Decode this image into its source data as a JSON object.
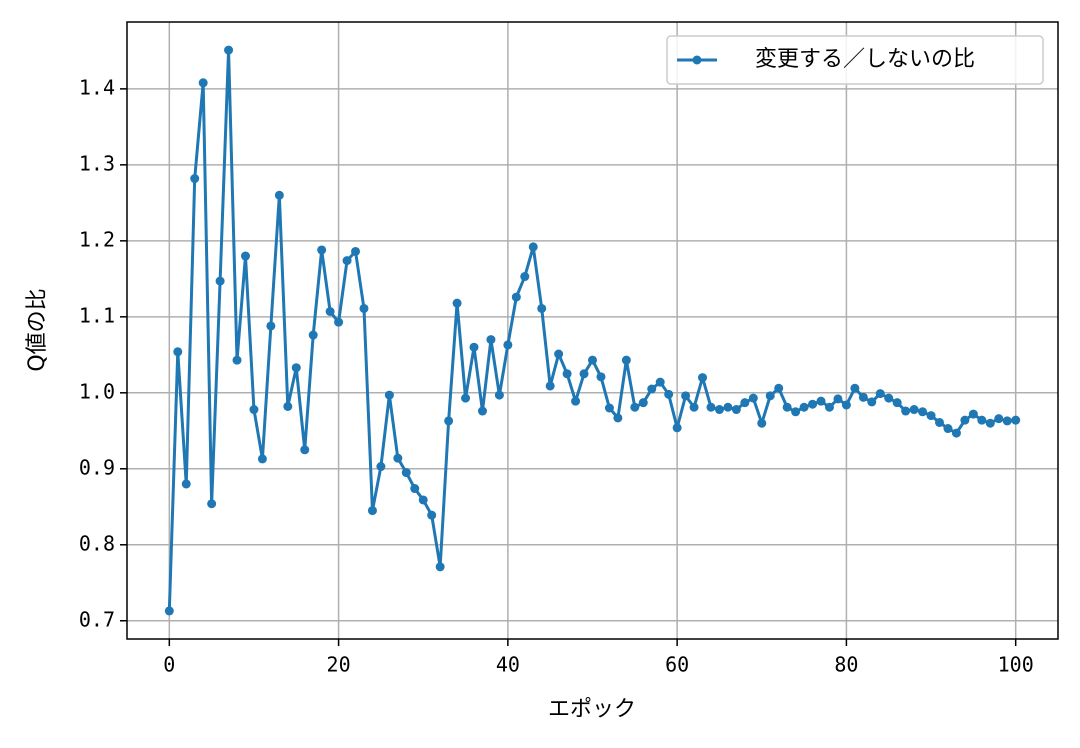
{
  "chart_data": {
    "type": "line",
    "x_label": "エポック",
    "y_label": "Q値の比",
    "x": [
      0,
      1,
      2,
      3,
      4,
      5,
      6,
      7,
      8,
      9,
      10,
      11,
      12,
      13,
      14,
      15,
      16,
      17,
      18,
      19,
      20,
      21,
      22,
      23,
      24,
      25,
      26,
      27,
      28,
      29,
      30,
      31,
      32,
      33,
      34,
      35,
      36,
      37,
      38,
      39,
      40,
      41,
      42,
      43,
      44,
      45,
      46,
      47,
      48,
      49,
      50,
      51,
      52,
      53,
      54,
      55,
      56,
      57,
      58,
      59,
      60,
      61,
      62,
      63,
      64,
      65,
      66,
      67,
      68,
      69,
      70,
      71,
      72,
      73,
      74,
      75,
      76,
      77,
      78,
      79,
      80,
      81,
      82,
      83,
      84,
      85,
      86,
      87,
      88,
      89,
      90,
      91,
      92,
      93,
      94,
      95,
      96,
      97,
      98,
      99,
      100
    ],
    "series": [
      {
        "name": "変更する／しないの比",
        "color": "#1f77b4",
        "values": [
          0.713,
          1.054,
          0.88,
          1.282,
          1.408,
          0.854,
          1.147,
          1.451,
          1.043,
          1.18,
          0.978,
          0.913,
          1.088,
          1.26,
          0.982,
          1.033,
          0.925,
          1.076,
          1.188,
          1.107,
          1.093,
          1.174,
          1.186,
          1.111,
          0.845,
          0.903,
          0.997,
          0.914,
          0.895,
          0.874,
          0.859,
          0.839,
          0.771,
          0.963,
          1.118,
          0.993,
          1.06,
          0.976,
          1.07,
          0.997,
          1.063,
          1.126,
          1.153,
          1.192,
          1.111,
          1.009,
          1.051,
          1.025,
          0.989,
          1.025,
          1.043,
          1.021,
          0.98,
          0.967,
          1.043,
          0.981,
          0.987,
          1.005,
          1.014,
          0.998,
          0.954,
          0.996,
          0.981,
          1.02,
          0.981,
          0.978,
          0.981,
          0.978,
          0.987,
          0.993,
          0.96,
          0.996,
          1.006,
          0.981,
          0.975,
          0.981,
          0.985,
          0.989,
          0.981,
          0.992,
          0.984,
          1.006,
          0.994,
          0.988,
          0.999,
          0.993,
          0.987,
          0.976,
          0.978,
          0.975,
          0.97,
          0.961,
          0.953,
          0.947,
          0.964,
          0.972,
          0.964,
          0.96,
          0.966,
          0.963,
          0.964
        ]
      }
    ],
    "xlim": [
      -5,
      105
    ],
    "xticks": [
      0,
      20,
      40,
      60,
      80,
      100
    ],
    "ylim": [
      0.676,
      1.488
    ],
    "yticks": [
      0.7,
      0.8,
      0.9,
      {
        "value": 1,
        "label": "1.0"
      },
      1.1,
      1.2,
      1.3,
      1.4
    ],
    "grid": true,
    "legend": "upper right"
  }
}
